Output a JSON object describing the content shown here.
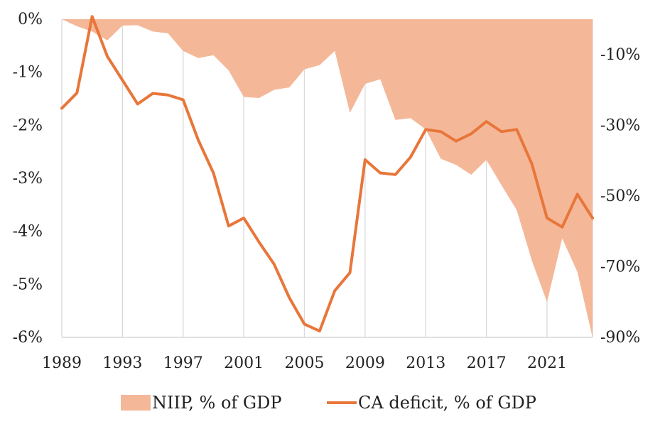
{
  "chart_data": {
    "type": "line",
    "x": [
      1989,
      1990,
      1991,
      1992,
      1993,
      1994,
      1995,
      1996,
      1997,
      1998,
      1999,
      2000,
      2001,
      2002,
      2003,
      2004,
      2005,
      2006,
      2007,
      2008,
      2009,
      2010,
      2011,
      2012,
      2013,
      2014,
      2015,
      2016,
      2017,
      2018,
      2019,
      2020,
      2021,
      2022,
      2023,
      2024
    ],
    "x_ticks": [
      "1989",
      "1993",
      "1997",
      "2001",
      "2005",
      "2009",
      "2013",
      "2017",
      "2021"
    ],
    "xlim": [
      1989,
      2024
    ],
    "y_left": {
      "ticks": [
        "0%",
        "-1%",
        "-2%",
        "-3%",
        "-4%",
        "-5%",
        "-6%"
      ],
      "ylim": [
        -6,
        0
      ]
    },
    "y_right": {
      "ticks": [
        "-10%",
        "-30%",
        "-50%",
        "-70%",
        "-90%"
      ],
      "ylim": [
        -90,
        0
      ]
    },
    "grid": "vertical",
    "legend_position": "bottom",
    "series": [
      {
        "name": "NIIP, % of GDP",
        "type": "area",
        "axis": "right",
        "color": "#f4b899",
        "values": [
          0,
          -2,
          -3.5,
          -6,
          -1.8,
          -1.7,
          -3.5,
          -4,
          -9,
          -11,
          -10.2,
          -14.5,
          -22,
          -22.3,
          -20,
          -19.3,
          -14.2,
          -13,
          -9,
          -26.5,
          -18.3,
          -17,
          -28.5,
          -28,
          -31.2,
          -39.5,
          -41.2,
          -44,
          -39.8,
          -47,
          -54,
          -68.3,
          -80,
          -62,
          -71.5,
          -90
        ]
      },
      {
        "name": "CA deficit, % of GDP",
        "type": "line",
        "axis": "left",
        "color": "#e8763a",
        "values": [
          -1.68,
          -1.39,
          0.05,
          -0.7,
          -1.15,
          -1.6,
          -1.4,
          -1.43,
          -1.52,
          -2.28,
          -2.9,
          -3.9,
          -3.75,
          -4.2,
          -4.62,
          -5.25,
          -5.75,
          -5.88,
          -5.12,
          -4.78,
          -2.65,
          -2.9,
          -2.93,
          -2.6,
          -2.08,
          -2.12,
          -2.3,
          -2.16,
          -1.93,
          -2.12,
          -2.08,
          -2.73,
          -3.75,
          -3.92,
          -3.3,
          -3.75
        ]
      }
    ]
  },
  "legend": {
    "items": [
      {
        "label": "NIIP, % of GDP",
        "swatch": "area",
        "color": "#f4b899"
      },
      {
        "label": "CA deficit, % of GDP",
        "swatch": "line",
        "color": "#e8763a"
      }
    ]
  }
}
